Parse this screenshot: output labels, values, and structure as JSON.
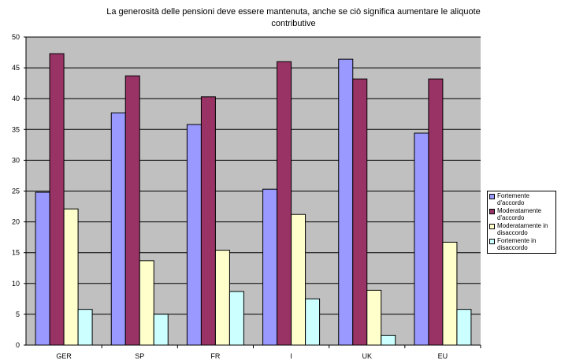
{
  "chart_data": {
    "type": "bar",
    "title_lines": [
      "La generosità delle pensioni deve essere mantenuta, anche se ciò significa aumentare le aliquote",
      "contributive"
    ],
    "categories": [
      "GER",
      "SP",
      "FR",
      "I",
      "UK",
      "EU"
    ],
    "series": [
      {
        "name": "Fortemente d'accordo",
        "values": [
          24.8,
          37.7,
          35.8,
          25.3,
          46.4,
          34.4
        ],
        "color": "#9999ff"
      },
      {
        "name": "Moderatamente d'accordo",
        "values": [
          47.3,
          43.7,
          40.3,
          46.0,
          43.2,
          43.2
        ],
        "color": "#993366"
      },
      {
        "name": "Moderatamente in disaccordo",
        "values": [
          22.1,
          13.7,
          15.4,
          21.2,
          8.9,
          16.7
        ],
        "color": "#ffffcc"
      },
      {
        "name": "Fortemente in disaccordo",
        "values": [
          5.8,
          5.0,
          8.7,
          7.5,
          1.6,
          5.8
        ],
        "color": "#ccffff"
      }
    ],
    "ylim": [
      0,
      50
    ],
    "yticks": [
      0,
      5,
      10,
      15,
      20,
      25,
      30,
      35,
      40,
      45,
      50
    ],
    "grid": true,
    "legend": "right",
    "plot_background": "#c0c0c0"
  }
}
